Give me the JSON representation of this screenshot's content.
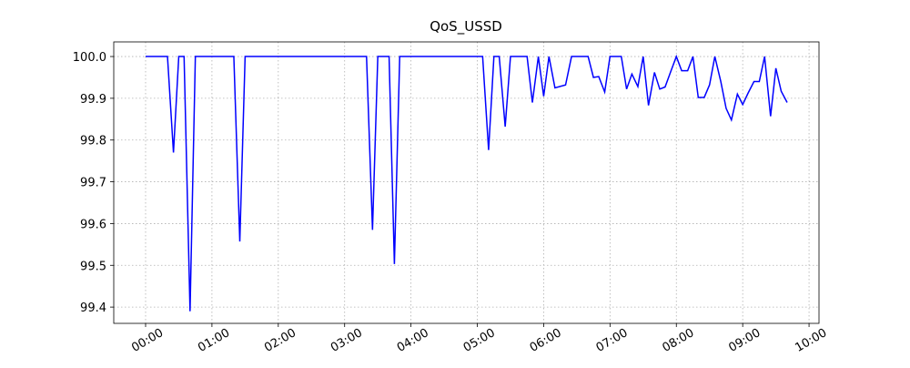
{
  "chart_data": {
    "type": "line",
    "title": "QoS_USSD",
    "x": [
      0,
      0.33,
      0.42,
      0.5,
      0.58,
      0.67,
      0.75,
      1.33,
      1.42,
      1.5,
      3.33,
      3.42,
      3.5,
      3.67,
      3.75,
      3.83,
      5.08,
      5.17,
      5.25,
      5.33,
      5.42,
      5.5,
      5.75,
      5.83,
      5.92,
      6.0,
      6.08,
      6.17,
      6.33,
      6.42,
      6.67,
      6.75,
      6.83,
      6.92,
      7.0,
      7.17,
      7.25,
      7.33,
      7.42,
      7.5,
      7.58,
      7.67,
      7.75,
      7.83,
      7.92,
      8.0,
      8.08,
      8.17,
      8.25,
      8.33,
      8.42,
      8.5,
      8.58,
      8.67,
      8.75,
      8.83,
      8.92,
      9.0,
      9.08,
      9.17,
      9.25,
      9.33,
      9.42,
      9.5,
      9.58,
      9.67
    ],
    "series": [
      {
        "name": "QoS_USSD",
        "color": "#0000ff",
        "values": [
          100,
          100,
          99.77,
          100,
          100,
          99.39,
          100,
          100,
          99.557,
          100,
          100,
          99.585,
          100,
          100,
          99.503,
          100,
          100,
          99.776,
          100,
          100,
          99.832,
          100,
          100,
          99.89,
          100,
          99.905,
          100,
          99.925,
          99.932,
          100,
          100,
          99.95,
          99.952,
          99.915,
          100,
          100,
          99.922,
          99.958,
          99.928,
          100,
          99.883,
          99.962,
          99.922,
          99.927,
          99.966,
          100,
          99.966,
          99.966,
          100,
          99.902,
          99.902,
          99.932,
          100,
          99.94,
          99.876,
          99.848,
          99.91,
          99.885,
          99.912,
          99.94,
          99.94,
          100,
          99.857,
          99.972,
          99.917,
          99.89
        ]
      }
    ],
    "xlim": [
      -0.48,
      10.15
    ],
    "ylim": [
      99.361,
      100.035
    ],
    "xticks": [
      {
        "value": 0,
        "label": "00:00"
      },
      {
        "value": 1,
        "label": "01:00"
      },
      {
        "value": 2,
        "label": "02:00"
      },
      {
        "value": 3,
        "label": "03:00"
      },
      {
        "value": 4,
        "label": "04:00"
      },
      {
        "value": 5,
        "label": "05:00"
      },
      {
        "value": 6,
        "label": "06:00"
      },
      {
        "value": 7,
        "label": "07:00"
      },
      {
        "value": 8,
        "label": "08:00"
      },
      {
        "value": 9,
        "label": "09:00"
      },
      {
        "value": 10,
        "label": "10:00"
      }
    ],
    "yticks": [
      99.4,
      99.5,
      99.6,
      99.7,
      99.8,
      99.9,
      {
        "value": 100,
        "label": "100.0"
      }
    ],
    "grid": true
  }
}
